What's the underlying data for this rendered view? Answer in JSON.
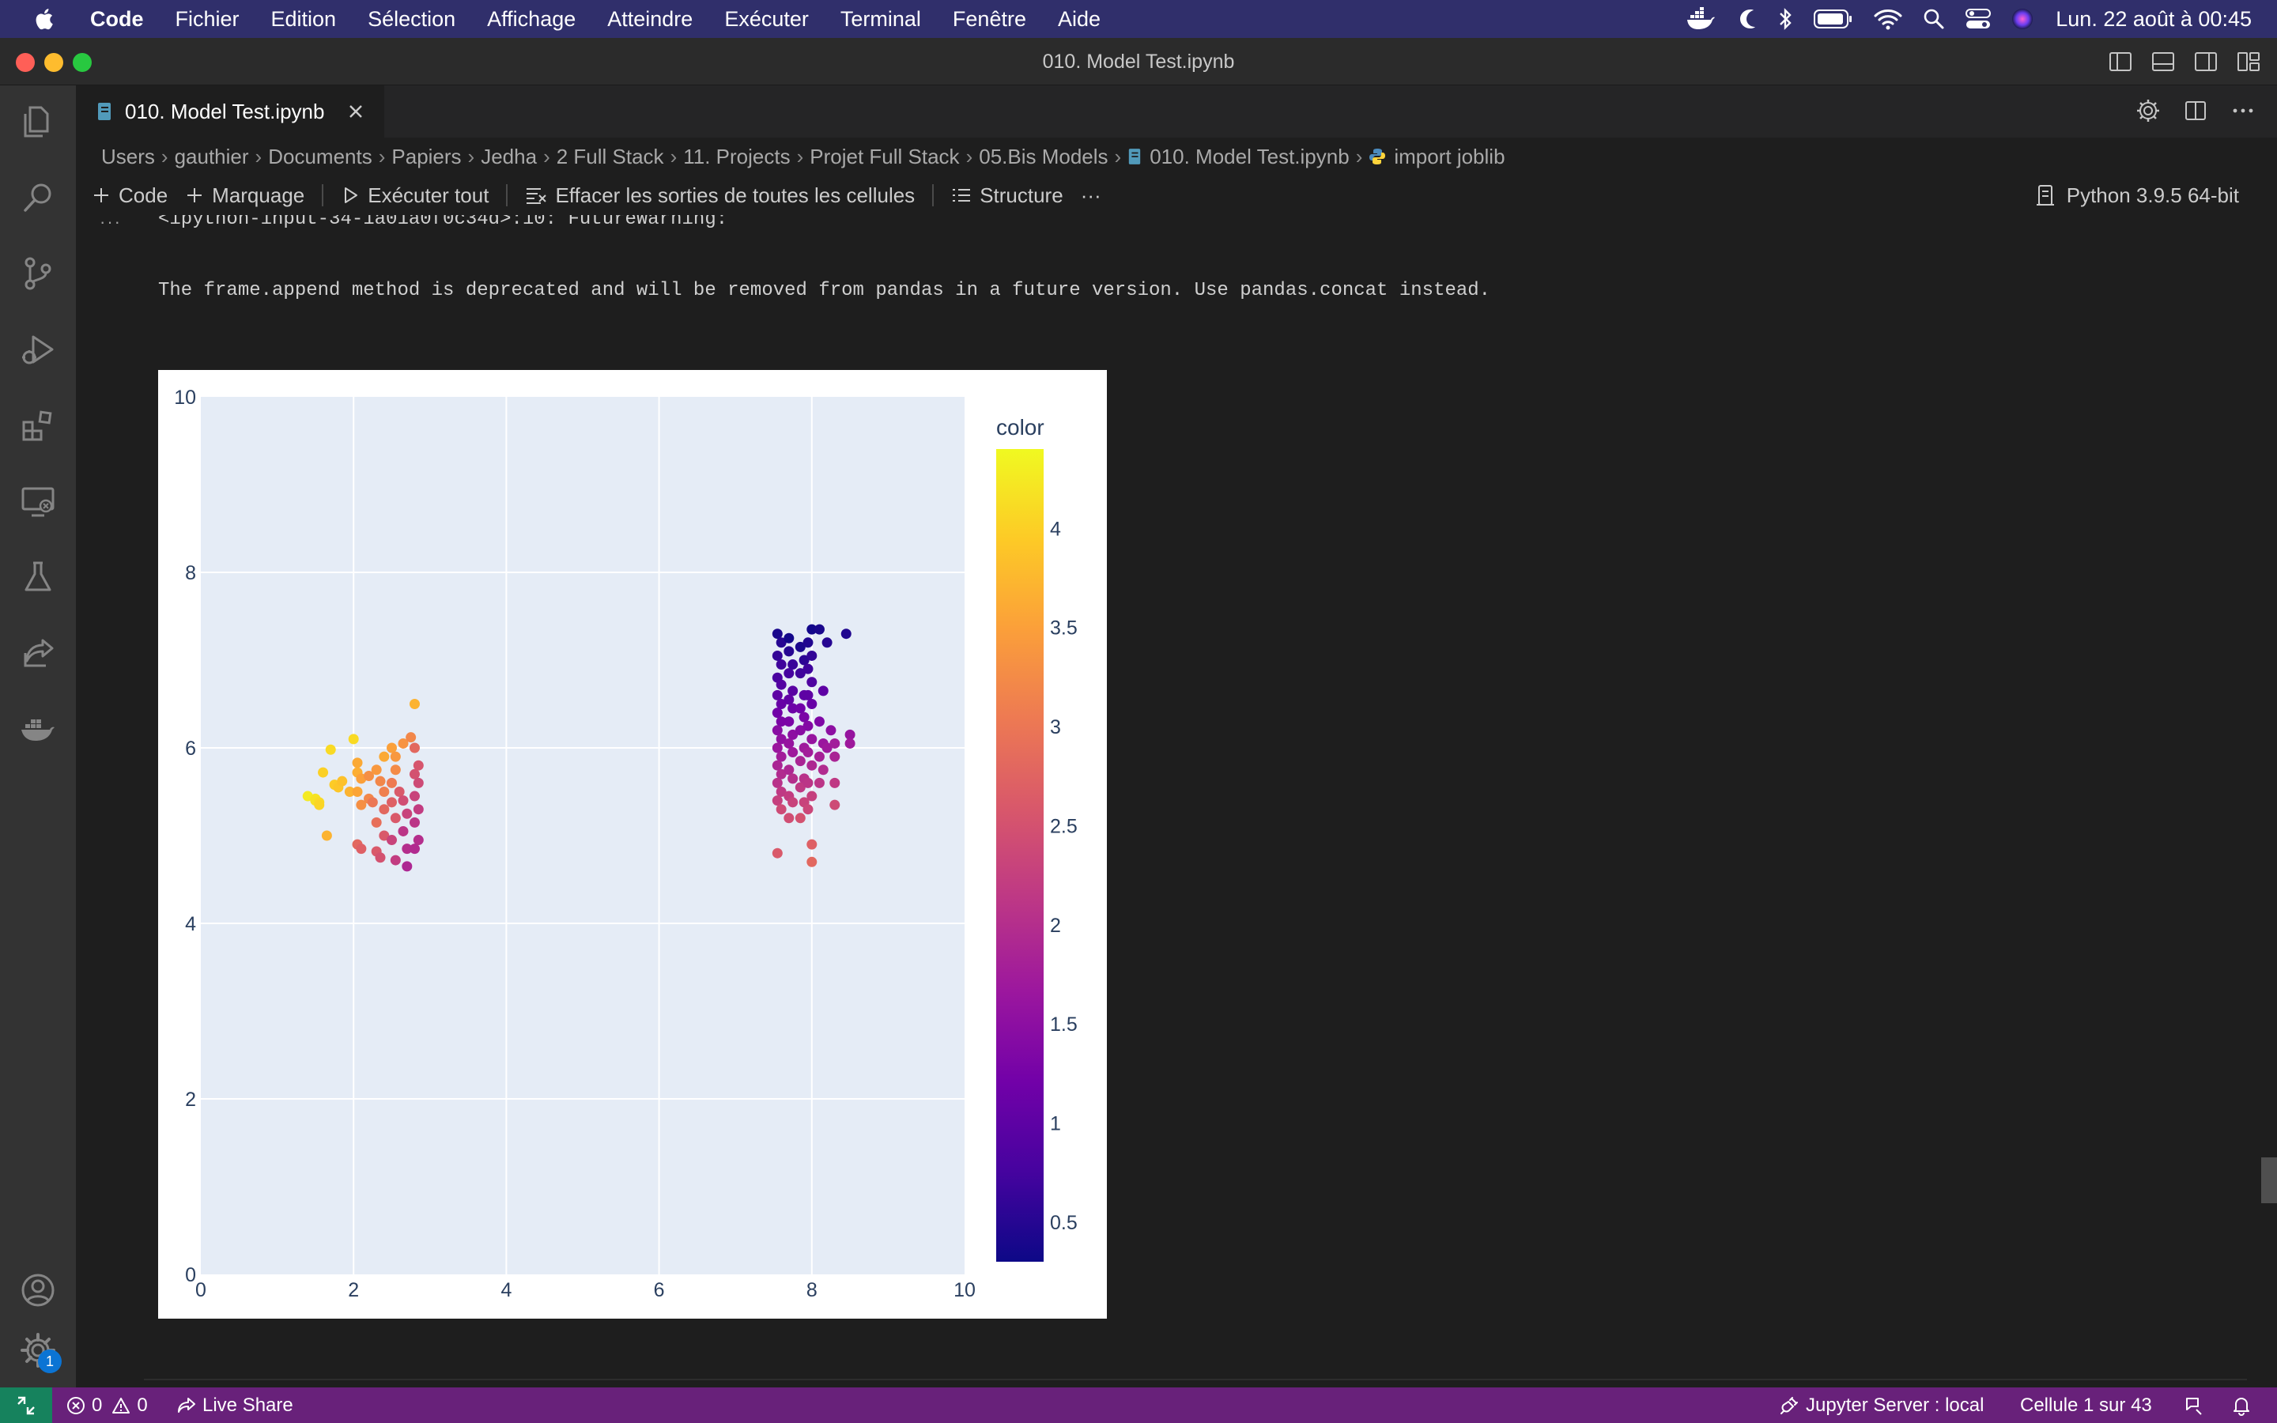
{
  "menubar": {
    "items": [
      "Code",
      "Fichier",
      "Edition",
      "Sélection",
      "Affichage",
      "Atteindre",
      "Exécuter",
      "Terminal",
      "Fenêtre",
      "Aide"
    ],
    "clock": "Lun. 22 août à 00:45"
  },
  "window": {
    "title": "010. Model Test.ipynb"
  },
  "tab": {
    "label": "010. Model Test.ipynb"
  },
  "breadcrumb": [
    "Users",
    "gauthier",
    "Documents",
    "Papiers",
    "Jedha",
    "2 Full Stack",
    "11. Projects",
    "Projet Full Stack",
    "05.Bis Models",
    "010. Model Test.ipynb",
    "import joblib"
  ],
  "toolbar": {
    "code": "Code",
    "markdown": "Marquage",
    "run_all": "Exécuter tout",
    "clear_outputs": "Effacer les sorties de toutes les cellules",
    "outline": "Structure",
    "more": "···"
  },
  "kernel": {
    "label": "Python 3.9.5 64-bit"
  },
  "output": {
    "dots": "···",
    "warning_line": "<ipython-input-34-1a01a0f0c34d>:10: FutureWarning:",
    "message_line": "The frame.append method is deprecated and will be removed from pandas in a future version. Use pandas.concat instead."
  },
  "chart_data": {
    "type": "scatter",
    "xlim": [
      0,
      10
    ],
    "ylim": [
      0,
      10
    ],
    "x_ticks": [
      "0",
      "2",
      "4",
      "6",
      "8",
      "10"
    ],
    "y_ticks": [
      "0",
      "2",
      "4",
      "6",
      "8",
      "10"
    ],
    "grid": true,
    "colorbar": {
      "title": "color",
      "range": [
        0.3,
        4.4
      ],
      "ticks": [
        "0.5",
        "1",
        "1.5",
        "2",
        "2.5",
        "3",
        "3.5",
        "4"
      ],
      "colorscale": [
        "#0d0887",
        "#46039f",
        "#7201a8",
        "#9c179e",
        "#bd3786",
        "#d8576b",
        "#ed7953",
        "#fb9f3a",
        "#fdca26",
        "#f0f921"
      ]
    },
    "points": [
      [
        1.4,
        5.45,
        4.25
      ],
      [
        1.5,
        5.42,
        4.2
      ],
      [
        1.5,
        5.4,
        4.18
      ],
      [
        1.55,
        5.38,
        4.1
      ],
      [
        1.55,
        5.35,
        4.05
      ],
      [
        1.6,
        5.72,
        4.0
      ],
      [
        1.7,
        5.98,
        4.1
      ],
      [
        1.65,
        5.0,
        3.7
      ],
      [
        1.75,
        5.58,
        3.95
      ],
      [
        1.8,
        5.55,
        3.9
      ],
      [
        1.85,
        5.62,
        3.85
      ],
      [
        1.95,
        5.5,
        3.7
      ],
      [
        2.0,
        6.1,
        4.1
      ],
      [
        2.05,
        5.83,
        3.6
      ],
      [
        2.05,
        5.72,
        3.65
      ],
      [
        2.1,
        5.65,
        3.5
      ],
      [
        2.05,
        5.5,
        3.55
      ],
      [
        2.1,
        5.35,
        3.3
      ],
      [
        2.05,
        4.9,
        2.8
      ],
      [
        2.1,
        4.85,
        2.7
      ],
      [
        2.2,
        5.68,
        3.3
      ],
      [
        2.2,
        5.42,
        3.2
      ],
      [
        2.25,
        5.38,
        3.0
      ],
      [
        2.3,
        5.75,
        3.4
      ],
      [
        2.35,
        5.62,
        3.2
      ],
      [
        2.3,
        5.15,
        2.9
      ],
      [
        2.3,
        4.82,
        2.6
      ],
      [
        2.35,
        4.75,
        2.5
      ],
      [
        2.4,
        5.9,
        3.6
      ],
      [
        2.4,
        5.5,
        3.1
      ],
      [
        2.4,
        5.3,
        2.8
      ],
      [
        2.4,
        5.0,
        2.6
      ],
      [
        2.5,
        6.0,
        3.5
      ],
      [
        2.55,
        5.9,
        3.4
      ],
      [
        2.55,
        5.75,
        3.25
      ],
      [
        2.5,
        5.6,
        3.05
      ],
      [
        2.5,
        5.38,
        2.7
      ],
      [
        2.55,
        5.2,
        2.6
      ],
      [
        2.5,
        4.95,
        2.3
      ],
      [
        2.55,
        4.72,
        2.2
      ],
      [
        2.65,
        6.05,
        3.35
      ],
      [
        2.6,
        5.5,
        2.6
      ],
      [
        2.65,
        5.4,
        2.45
      ],
      [
        2.7,
        5.25,
        2.3
      ],
      [
        2.65,
        5.05,
        2.1
      ],
      [
        2.7,
        4.85,
        2.0
      ],
      [
        2.7,
        4.65,
        1.9
      ],
      [
        2.8,
        6.5,
        3.7
      ],
      [
        2.75,
        6.12,
        3.2
      ],
      [
        2.8,
        6.0,
        2.8
      ],
      [
        2.8,
        5.7,
        2.5
      ],
      [
        2.85,
        5.6,
        2.4
      ],
      [
        2.8,
        5.45,
        2.3
      ],
      [
        2.85,
        5.3,
        2.2
      ],
      [
        2.8,
        5.15,
        2.1
      ],
      [
        2.85,
        4.95,
        2.0
      ],
      [
        2.8,
        4.85,
        1.95
      ],
      [
        2.85,
        5.8,
        2.55
      ],
      [
        7.55,
        7.3,
        0.4
      ],
      [
        7.6,
        7.2,
        0.5
      ],
      [
        7.55,
        7.05,
        0.6
      ],
      [
        7.6,
        6.95,
        0.7
      ],
      [
        7.55,
        6.8,
        0.8
      ],
      [
        7.6,
        6.72,
        0.9
      ],
      [
        7.55,
        6.6,
        1.0
      ],
      [
        7.6,
        6.5,
        1.1
      ],
      [
        7.55,
        6.4,
        1.2
      ],
      [
        7.6,
        6.3,
        1.3
      ],
      [
        7.55,
        6.2,
        1.45
      ],
      [
        7.6,
        6.1,
        1.55
      ],
      [
        7.55,
        6.0,
        1.65
      ],
      [
        7.6,
        5.9,
        1.75
      ],
      [
        7.55,
        5.8,
        1.85
      ],
      [
        7.6,
        5.7,
        1.95
      ],
      [
        7.55,
        5.6,
        2.05
      ],
      [
        7.6,
        5.5,
        2.15
      ],
      [
        7.55,
        5.4,
        2.25
      ],
      [
        7.6,
        5.3,
        2.4
      ],
      [
        7.55,
        4.8,
        2.6
      ],
      [
        7.7,
        7.25,
        0.35
      ],
      [
        7.7,
        7.1,
        0.5
      ],
      [
        7.75,
        6.95,
        0.65
      ],
      [
        7.7,
        6.85,
        0.75
      ],
      [
        7.75,
        6.65,
        0.95
      ],
      [
        7.7,
        6.55,
        1.05
      ],
      [
        7.75,
        6.45,
        1.15
      ],
      [
        7.7,
        6.3,
        1.3
      ],
      [
        7.75,
        6.15,
        1.5
      ],
      [
        7.7,
        6.05,
        1.6
      ],
      [
        7.75,
        5.95,
        1.7
      ],
      [
        7.7,
        5.75,
        1.9
      ],
      [
        7.75,
        5.65,
        2.0
      ],
      [
        7.7,
        5.45,
        2.2
      ],
      [
        7.75,
        5.38,
        2.3
      ],
      [
        7.7,
        5.2,
        2.45
      ],
      [
        7.85,
        7.15,
        0.4
      ],
      [
        7.9,
        7.0,
        0.55
      ],
      [
        7.85,
        6.85,
        0.7
      ],
      [
        7.9,
        6.6,
        1.0
      ],
      [
        7.85,
        6.45,
        1.2
      ],
      [
        7.9,
        6.35,
        1.3
      ],
      [
        7.85,
        6.2,
        1.45
      ],
      [
        7.9,
        6.0,
        1.7
      ],
      [
        7.85,
        5.85,
        1.85
      ],
      [
        7.9,
        5.65,
        2.05
      ],
      [
        7.85,
        5.55,
        2.15
      ],
      [
        7.9,
        5.38,
        2.3
      ],
      [
        7.85,
        5.2,
        2.5
      ],
      [
        8.0,
        7.35,
        0.35
      ],
      [
        7.95,
        7.2,
        0.45
      ],
      [
        8.0,
        7.05,
        0.6
      ],
      [
        7.95,
        6.9,
        0.7
      ],
      [
        8.0,
        6.75,
        0.85
      ],
      [
        7.95,
        6.6,
        1.0
      ],
      [
        8.0,
        6.5,
        1.1
      ],
      [
        7.95,
        6.25,
        1.4
      ],
      [
        8.0,
        6.1,
        1.6
      ],
      [
        7.95,
        5.95,
        1.75
      ],
      [
        8.0,
        5.8,
        1.9
      ],
      [
        7.95,
        5.6,
        2.1
      ],
      [
        8.0,
        5.45,
        2.25
      ],
      [
        7.95,
        5.3,
        2.35
      ],
      [
        8.0,
        4.9,
        2.7
      ],
      [
        8.0,
        4.7,
        2.8
      ],
      [
        8.1,
        7.35,
        0.4
      ],
      [
        8.15,
        6.65,
        1.0
      ],
      [
        8.1,
        6.3,
        1.35
      ],
      [
        8.15,
        6.05,
        1.65
      ],
      [
        8.1,
        5.9,
        1.8
      ],
      [
        8.15,
        5.75,
        1.95
      ],
      [
        8.1,
        5.6,
        2.1
      ],
      [
        8.2,
        7.2,
        0.5
      ],
      [
        8.25,
        6.2,
        1.5
      ],
      [
        8.2,
        6.0,
        1.7
      ],
      [
        8.3,
        5.9,
        1.85
      ],
      [
        8.3,
        6.05,
        1.75
      ],
      [
        8.3,
        5.6,
        2.15
      ],
      [
        8.3,
        5.35,
        2.4
      ],
      [
        8.45,
        7.3,
        0.45
      ],
      [
        8.5,
        6.15,
        1.6
      ],
      [
        8.5,
        6.05,
        1.7
      ]
    ]
  },
  "status": {
    "errors": "0",
    "warnings": "0",
    "live_share": "Live Share",
    "jupyter": "Jupyter Server : local",
    "cell": "Cellule 1 sur 43"
  }
}
